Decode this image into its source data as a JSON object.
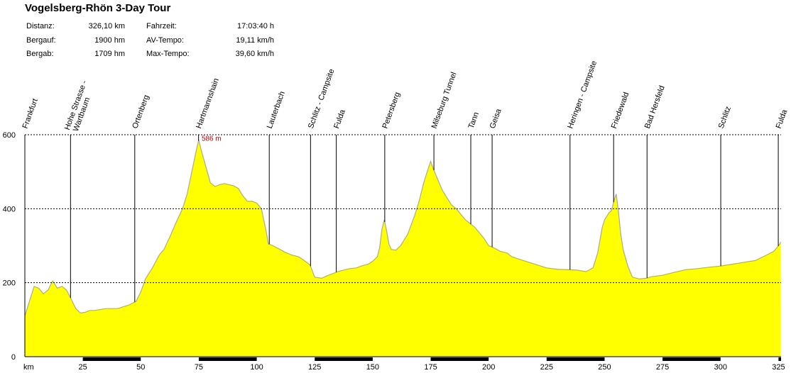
{
  "title": "Vogelsberg-Rhön 3-Day Tour",
  "stats_left": [
    {
      "label": "Distanz:",
      "value": "326,10 km"
    },
    {
      "label": "Bergauf:",
      "value": "1900 hm"
    },
    {
      "label": "Bergab:",
      "value": "1709 hm"
    }
  ],
  "stats_right": [
    {
      "label": "Fahrzeit:",
      "value": "17:03:40 h"
    },
    {
      "label": "AV-Tempo:",
      "value": "19,11 km/h"
    },
    {
      "label": "Max-Tempo:",
      "value": "39,60 km/h"
    }
  ],
  "colors": {
    "fill": "#ffff00",
    "outline": "#a8a8a8",
    "peak": "#cc0000",
    "grid": "#000000"
  },
  "chart_data": {
    "type": "area",
    "title": "Vogelsberg-Rhön 3-Day Tour",
    "xlabel": "km",
    "ylabel": "",
    "xlim": [
      0,
      326.1
    ],
    "ylim": [
      0,
      600
    ],
    "x_ticks": [
      25,
      50,
      75,
      100,
      125,
      150,
      175,
      200,
      225,
      250,
      275,
      300,
      325
    ],
    "y_ticks": [
      0,
      200,
      400,
      600
    ],
    "grid": "horizontal dotted at 200, 400, 600",
    "peak_label": {
      "x": 75,
      "y": 586,
      "text": "586 m"
    },
    "waypoints": [
      {
        "name": "Frankfurt",
        "km": 0
      },
      {
        "name": "Hohe Strasse - Wartbaum",
        "km": 19.7
      },
      {
        "name": "Ortenberg",
        "km": 47.4
      },
      {
        "name": "Hartmannshain",
        "km": 74.9
      },
      {
        "name": "Lauterbach",
        "km": 105.4
      },
      {
        "name": "Schlitz - Campsite",
        "km": 123.2
      },
      {
        "name": "Fulda",
        "km": 134.3
      },
      {
        "name": "Petersberg",
        "km": 155.2
      },
      {
        "name": "Milseburg Tunnel",
        "km": 176.4
      },
      {
        "name": "Tann",
        "km": 192.3
      },
      {
        "name": "Geisa",
        "km": 201.5
      },
      {
        "name": "Heringen - Campsite",
        "km": 235.1
      },
      {
        "name": "Friedewald",
        "km": 253.9
      },
      {
        "name": "Bad Hersfeld",
        "km": 268.3
      },
      {
        "name": "Schlitz",
        "km": 300.1
      },
      {
        "name": "Fulda",
        "km": 324.9
      }
    ],
    "series": [
      {
        "x": [
          0,
          2,
          4,
          6,
          8,
          10,
          12,
          14,
          16,
          18,
          20,
          22,
          24,
          26,
          28,
          30,
          35,
          40,
          45,
          48,
          50,
          52,
          55,
          58,
          60,
          63,
          65,
          68,
          70,
          72,
          74,
          75,
          76,
          78,
          80,
          82,
          84,
          86,
          88,
          90,
          92,
          94,
          96,
          98,
          100,
          102,
          104,
          105,
          107,
          110,
          112,
          115,
          118,
          120,
          123,
          125,
          128,
          130,
          133,
          135,
          138,
          140,
          143,
          145,
          148,
          150,
          152,
          153,
          154,
          155,
          156,
          157,
          158,
          160,
          162,
          165,
          168,
          170,
          172,
          174,
          175,
          176,
          178,
          180,
          182,
          184,
          186,
          188,
          190,
          191,
          192,
          194,
          196,
          198,
          200,
          202,
          205,
          208,
          210,
          215,
          220,
          225,
          230,
          235,
          238,
          240,
          242,
          245,
          247,
          249,
          250,
          251,
          252,
          253,
          254,
          255,
          256,
          257,
          258,
          260,
          262,
          265,
          268,
          270,
          275,
          280,
          285,
          290,
          295,
          300,
          305,
          310,
          315,
          320,
          323,
          325,
          326
        ],
        "y": [
          110,
          150,
          190,
          185,
          170,
          180,
          205,
          185,
          190,
          180,
          155,
          130,
          118,
          120,
          125,
          125,
          130,
          130,
          140,
          150,
          175,
          210,
          240,
          275,
          290,
          330,
          360,
          400,
          440,
          500,
          560,
          586,
          560,
          515,
          470,
          460,
          465,
          468,
          465,
          462,
          455,
          435,
          420,
          420,
          415,
          400,
          340,
          305,
          300,
          290,
          283,
          275,
          270,
          262,
          248,
          215,
          212,
          218,
          225,
          230,
          235,
          238,
          240,
          245,
          250,
          258,
          270,
          295,
          345,
          370,
          340,
          305,
          290,
          288,
          300,
          330,
          380,
          420,
          470,
          510,
          528,
          510,
          480,
          450,
          430,
          410,
          400,
          385,
          370,
          365,
          360,
          350,
          335,
          320,
          300,
          295,
          285,
          280,
          270,
          260,
          250,
          240,
          236,
          235,
          234,
          232,
          230,
          240,
          280,
          350,
          370,
          380,
          390,
          395,
          420,
          440,
          390,
          330,
          290,
          245,
          215,
          210,
          212,
          216,
          220,
          228,
          235,
          238,
          242,
          245,
          250,
          255,
          260,
          275,
          285,
          300,
          310
        ]
      }
    ]
  }
}
